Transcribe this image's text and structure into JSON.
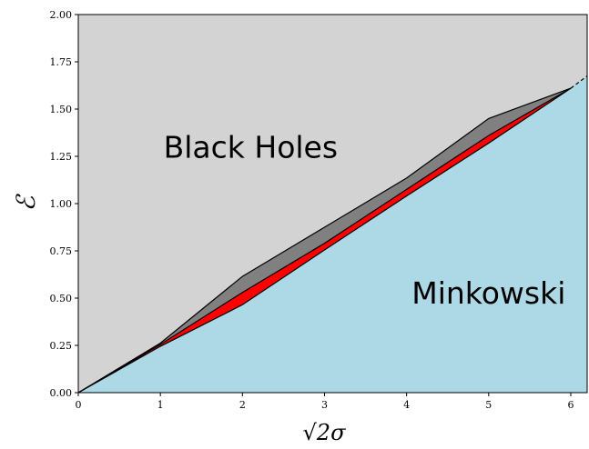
{
  "chart_data": {
    "type": "area",
    "xlabel": "√2σ",
    "ylabel": "ℰ",
    "xlim": [
      0,
      6.2
    ],
    "ylim": [
      0,
      2.0
    ],
    "x_ticks": [
      0,
      1,
      2,
      3,
      4,
      5,
      6
    ],
    "y_ticks": [
      "0.00",
      "0.25",
      "0.50",
      "0.75",
      "1.00",
      "1.25",
      "1.50",
      "1.75",
      "2.00"
    ],
    "grid": false,
    "annotations": [
      {
        "text": "Black Holes",
        "x": 2.1,
        "y": 1.3
      },
      {
        "text": "Minkowski",
        "x": 5.0,
        "y": 0.53
      }
    ],
    "colors": {
      "black_holes_region": "#d3d3d3",
      "minkowski_region": "#add8e6",
      "upper_band": "#808080",
      "lower_band": "#ff0000",
      "outline": "#000000"
    },
    "series": [
      {
        "x": [
          0,
          1,
          2,
          3,
          4,
          5,
          6
        ],
        "values": [
          0,
          0.262,
          0.615,
          0.875,
          1.135,
          1.45,
          1.61
        ]
      },
      {
        "x": [
          0,
          1,
          2,
          3,
          4,
          5,
          6
        ],
        "values": [
          0,
          0.255,
          0.53,
          0.79,
          1.075,
          1.36,
          1.61
        ]
      },
      {
        "x": [
          0,
          1,
          2,
          3,
          4,
          5,
          6,
          6.2
        ],
        "values": [
          0,
          0.245,
          0.465,
          0.755,
          1.04,
          1.32,
          1.61,
          1.675
        ]
      }
    ],
    "dashed_extension": {
      "x": [
        6,
        6.2
      ],
      "values": [
        1.61,
        1.675
      ]
    }
  }
}
